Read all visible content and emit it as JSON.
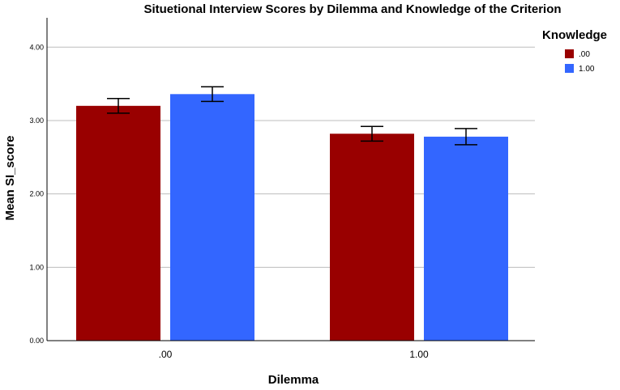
{
  "chart_data": {
    "type": "bar",
    "title": "Situetional Interview Scores by Dilemma and Knowledge of the Criterion",
    "xlabel": "Dilemma",
    "ylabel": "Mean SI_score",
    "categories": [
      ".00",
      "1.00"
    ],
    "yticks": [
      "0.00",
      "1.00",
      "2.00",
      "3.00",
      "4.00"
    ],
    "ylim": [
      0,
      4.4
    ],
    "grid": true,
    "legend": {
      "title": "Knowledge",
      "placement": "top-right"
    },
    "series": [
      {
        "name": ".00",
        "color": "#990000",
        "values": [
          3.2,
          2.82
        ],
        "error": [
          0.1,
          0.1
        ]
      },
      {
        "name": "1.00",
        "color": "#3366ff",
        "values": [
          3.36,
          2.78
        ],
        "error": [
          0.1,
          0.11
        ]
      }
    ]
  }
}
